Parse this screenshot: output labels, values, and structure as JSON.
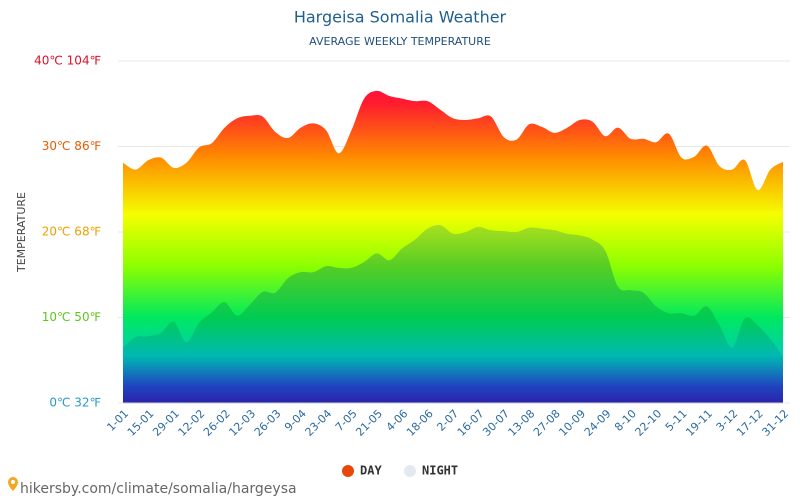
{
  "chart_data": {
    "type": "area",
    "title": "Hargeisa Somalia Weather",
    "subtitle": "AVERAGE WEEKLY TEMPERATURE",
    "y_label": "TEMPERATURE",
    "source": "hikersby.com/climate/somalia/hargeysa",
    "categories": [
      "1-01",
      null,
      "15-01",
      null,
      "29-01",
      null,
      "12-02",
      null,
      "26-02",
      null,
      "12-03",
      null,
      "26-03",
      null,
      "9-04",
      null,
      "23-04",
      null,
      "7-05",
      null,
      "21-05",
      null,
      "4-06",
      null,
      "18-06",
      null,
      "2-07",
      null,
      "16-07",
      null,
      "30-07",
      null,
      "13-08",
      null,
      "27-08",
      null,
      "10-09",
      null,
      "24-09",
      null,
      "8-10",
      null,
      "22-10",
      null,
      "5-11",
      null,
      "19-11",
      null,
      "3-12",
      null,
      "17-12",
      null,
      "31-12"
    ],
    "series": [
      {
        "name": "DAY",
        "color": "#e8470c",
        "values": [
          28.1,
          27.3,
          28.4,
          28.7,
          27.5,
          28.1,
          29.9,
          30.4,
          32.2,
          33.3,
          33.6,
          33.5,
          31.7,
          31.0,
          32.2,
          32.7,
          31.9,
          29.2,
          31.9,
          35.6,
          36.5,
          35.9,
          35.6,
          35.3,
          35.3,
          34.3,
          33.3,
          33.1,
          33.3,
          33.5,
          31.1,
          30.8,
          32.6,
          32.3,
          31.6,
          32.2,
          33.1,
          32.9,
          31.2,
          32.2,
          30.9,
          30.9,
          30.5,
          31.5,
          28.7,
          28.8,
          30.1,
          27.7,
          27.3,
          28.4,
          24.9,
          27.3,
          28.2
        ]
      },
      {
        "name": "NIGHT",
        "color": "#e3e9f0",
        "values": [
          6.5,
          7.7,
          7.8,
          8.2,
          9.5,
          7.1,
          9.4,
          10.6,
          11.8,
          10.2,
          11.5,
          13.0,
          12.9,
          14.6,
          15.3,
          15.3,
          16.0,
          15.8,
          15.8,
          16.5,
          17.5,
          16.7,
          18.1,
          19.1,
          20.4,
          20.8,
          19.8,
          20.0,
          20.6,
          20.2,
          20.1,
          20.0,
          20.5,
          20.4,
          20.2,
          19.8,
          19.6,
          19.1,
          17.8,
          13.6,
          13.2,
          12.9,
          11.3,
          10.5,
          10.5,
          10.2,
          11.3,
          9.1,
          6.5,
          9.9,
          9.1,
          7.5,
          5.4
        ]
      }
    ],
    "ylim": [
      0,
      40
    ],
    "yticks": [
      {
        "value": 0,
        "label": "0℃ 32℉"
      },
      {
        "value": 10,
        "label": "10℃ 50℉"
      },
      {
        "value": 20,
        "label": "20℃ 68℉"
      },
      {
        "value": 30,
        "label": "30℃ 86℉"
      },
      {
        "value": 40,
        "label": "40℃ 104℉"
      }
    ],
    "ytick_colors": [
      "#2a9bc4",
      "#5cc81e",
      "#f0a000",
      "#e85a00",
      "#e0102a"
    ],
    "grid": true
  }
}
